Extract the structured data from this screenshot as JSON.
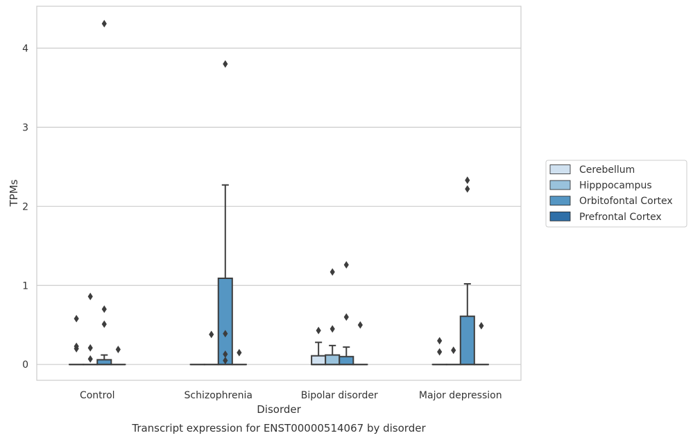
{
  "chart_data": {
    "type": "box",
    "title": "Transcript expression for ENST00000514067 by disorder",
    "xlabel": "Disorder",
    "ylabel": "TPMs",
    "ylim": [
      -0.2,
      4.53
    ],
    "yticks": [
      0,
      1,
      2,
      3,
      4
    ],
    "grid": "horizontal",
    "legend_position": "right",
    "categories": [
      "Control",
      "Schizophrenia",
      "Bipolar disorder",
      "Major depression"
    ],
    "series": [
      {
        "name": "Cerebellum",
        "color": "#d0e1f0",
        "boxes": [
          {
            "q1": 0,
            "median": 0,
            "q3": 0,
            "whisker_low": 0,
            "whisker_high": 0,
            "outliers": [
              0.58,
              0.23,
              0.2
            ]
          },
          {
            "q1": 0,
            "median": 0,
            "q3": 0,
            "whisker_low": 0,
            "whisker_high": 0,
            "outliers": []
          },
          {
            "q1": 0,
            "median": 0,
            "q3": 0.11,
            "whisker_low": 0,
            "whisker_high": 0.28,
            "outliers": [
              0.43
            ]
          },
          {
            "q1": 0,
            "median": 0,
            "q3": 0,
            "whisker_low": 0,
            "whisker_high": 0,
            "outliers": [
              0.3,
              0.16
            ]
          }
        ]
      },
      {
        "name": "Hipppocampus",
        "color": "#99c2dc",
        "boxes": [
          {
            "q1": 0,
            "median": 0,
            "q3": 0,
            "whisker_low": 0,
            "whisker_high": 0,
            "outliers": [
              0.86,
              0.21,
              0.07
            ]
          },
          {
            "q1": 0,
            "median": 0,
            "q3": 0,
            "whisker_low": 0,
            "whisker_high": 0,
            "outliers": [
              0.38
            ]
          },
          {
            "q1": 0,
            "median": 0,
            "q3": 0.12,
            "whisker_low": 0,
            "whisker_high": 0.24,
            "outliers": [
              1.17,
              0.45
            ]
          },
          {
            "q1": 0,
            "median": 0,
            "q3": 0,
            "whisker_low": 0,
            "whisker_high": 0,
            "outliers": [
              0.18
            ]
          }
        ]
      },
      {
        "name": "Orbitofontal Cortex",
        "color": "#5596c3",
        "boxes": [
          {
            "q1": 0,
            "median": 0,
            "q3": 0.06,
            "whisker_low": 0,
            "whisker_high": 0.12,
            "outliers": [
              4.31,
              0.7,
              0.51
            ]
          },
          {
            "q1": 0,
            "median": 0,
            "q3": 1.09,
            "whisker_low": 0,
            "whisker_high": 2.27,
            "outliers": [
              3.8,
              0.39,
              0.13,
              0.05
            ]
          },
          {
            "q1": 0,
            "median": 0,
            "q3": 0.1,
            "whisker_low": 0,
            "whisker_high": 0.22,
            "outliers": [
              1.26,
              0.6
            ]
          },
          {
            "q1": 0,
            "median": 0,
            "q3": 0.61,
            "whisker_low": 0,
            "whisker_high": 1.02,
            "outliers": [
              2.33,
              2.22
            ]
          }
        ]
      },
      {
        "name": "Prefrontal Cortex",
        "color": "#2e6fa8",
        "boxes": [
          {
            "q1": 0,
            "median": 0,
            "q3": 0,
            "whisker_low": 0,
            "whisker_high": 0,
            "outliers": [
              0.19
            ]
          },
          {
            "q1": 0,
            "median": 0,
            "q3": 0,
            "whisker_low": 0,
            "whisker_high": 0,
            "outliers": [
              0.15
            ]
          },
          {
            "q1": 0,
            "median": 0,
            "q3": 0,
            "whisker_low": 0,
            "whisker_high": 0,
            "outliers": [
              0.5
            ]
          },
          {
            "q1": 0,
            "median": 0,
            "q3": 0,
            "whisker_low": 0,
            "whisker_high": 0,
            "outliers": [
              0.49
            ]
          }
        ]
      }
    ]
  },
  "colors": {
    "grid": "#cccccc",
    "frame": "#cccccc",
    "box_edge": "#3d3d3d",
    "outlier": "#3d3d3d"
  }
}
